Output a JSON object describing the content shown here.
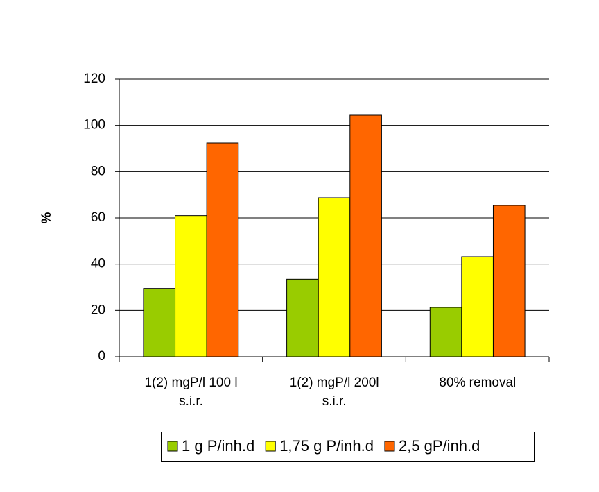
{
  "chart_data": {
    "type": "bar",
    "y_label": "%",
    "categories": [
      "1(2) mgP/l 100 l\ns.i.r.",
      "1(2) mgP/l 200l\ns.i.r.",
      "80% removal"
    ],
    "series": [
      {
        "name": "1 g P/inh.d",
        "color": "#99cc00",
        "values": [
          29.5,
          33.5,
          21.3
        ]
      },
      {
        "name": "1,75 g P/inh.d",
        "color": "#ffff00",
        "values": [
          61,
          68.7,
          43.2
        ]
      },
      {
        "name": "2,5 gP/inh.d",
        "color": "#ff6600",
        "values": [
          92.4,
          104.4,
          65.4
        ]
      }
    ],
    "ylim": [
      0,
      120
    ],
    "yticks": [
      0,
      20,
      40,
      60,
      80,
      100,
      120
    ],
    "grid": true,
    "legend": "bottom"
  }
}
